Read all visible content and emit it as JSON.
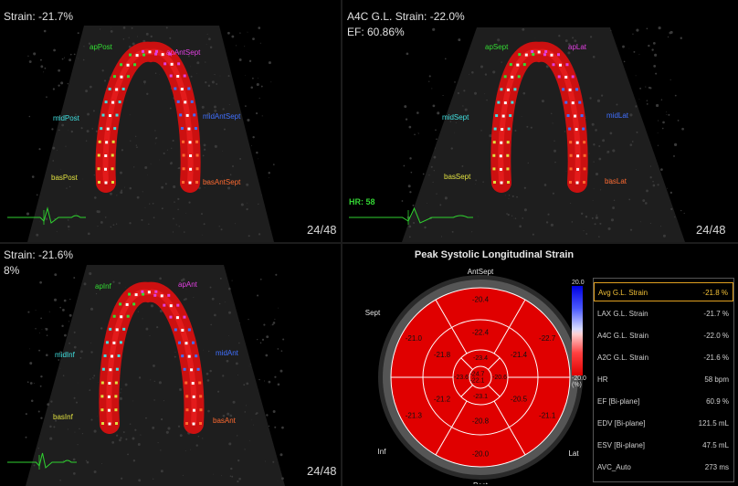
{
  "views": [
    {
      "id": "tl",
      "title_lines": [
        "Strain: -21.7%"
      ],
      "frame": "24/48",
      "labels": [
        {
          "text": "apPost",
          "color": "#33dd33"
        },
        {
          "text": "apAntSept",
          "color": "#e040e0"
        },
        {
          "text": "midPost",
          "color": "#40e0e0"
        },
        {
          "text": "midAntSept",
          "color": "#4070ff"
        },
        {
          "text": "basPost",
          "color": "#e0e040"
        },
        {
          "text": "basAntSept",
          "color": "#ff6a30"
        }
      ]
    },
    {
      "id": "tr",
      "title_lines": [
        "A4C G.L. Strain: -22.0%",
        "EF: 60.86%"
      ],
      "frame": "24/48",
      "hr": "HR: 58",
      "labels": [
        {
          "text": "apSept",
          "color": "#33dd33"
        },
        {
          "text": "apLat",
          "color": "#e040e0"
        },
        {
          "text": "midSept",
          "color": "#40e0e0"
        },
        {
          "text": "midLat",
          "color": "#4070ff"
        },
        {
          "text": "basSept",
          "color": "#e0e040"
        },
        {
          "text": "basLat",
          "color": "#ff6a30"
        }
      ]
    },
    {
      "id": "bl",
      "title_lines": [
        "Strain: -21.6%",
        "8%"
      ],
      "frame": "24/48",
      "labels": [
        {
          "text": "apInf",
          "color": "#33dd33"
        },
        {
          "text": "apAnt",
          "color": "#e040e0"
        },
        {
          "text": "midInf",
          "color": "#40e0e0"
        },
        {
          "text": "midAnt",
          "color": "#4070ff"
        },
        {
          "text": "basInf",
          "color": "#e0e040"
        },
        {
          "text": "basAnt",
          "color": "#ff6a30"
        }
      ]
    }
  ],
  "bullseye": {
    "title": "Peak Systolic Longitudinal Strain",
    "fill_color": "#e00000",
    "wall_labels": [
      "AntSept",
      "Sept",
      "Ant",
      "Inf",
      "Lat",
      "Post"
    ],
    "outer_ring": [
      "-20.4",
      "-22.7",
      "-21.1",
      "-20.0",
      "-21.3",
      "-21.0"
    ],
    "mid_ring": [
      "-22.4",
      "-21.4",
      "-20.5",
      "-20.8",
      "-21.2",
      "-21.8"
    ],
    "inner_ring": [
      "-23.4",
      "-20.6",
      "-23.1",
      "-23.6",
      "-22.1",
      "-24.7"
    ],
    "legend": {
      "top": "20.0",
      "bottom": "-20.0",
      "unit": "(%)"
    }
  },
  "table": [
    {
      "label": "Avg G.L. Strain",
      "value": "-21.8 %",
      "highlight": true
    },
    {
      "label": "LAX G.L. Strain",
      "value": "-21.7 %"
    },
    {
      "label": "A4C G.L. Strain",
      "value": "-22.0 %"
    },
    {
      "label": "A2C G.L. Strain",
      "value": "-21.6 %"
    },
    {
      "label": "HR",
      "value": "58 bpm"
    },
    {
      "label": "EF [Bi-plane]",
      "value": "60.9 %"
    },
    {
      "label": "EDV [Bi-plane]",
      "value": "121.5 mL"
    },
    {
      "label": "ESV [Bi-plane]",
      "value": "47.5 mL"
    },
    {
      "label": "AVC_Auto",
      "value": "273 ms"
    }
  ]
}
